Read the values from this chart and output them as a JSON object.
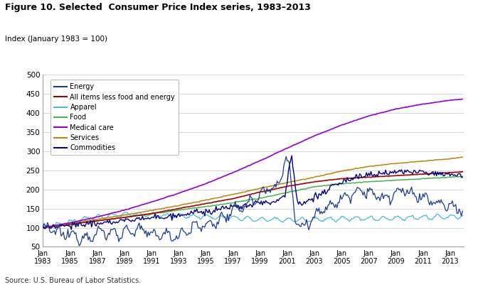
{
  "title": "Figure 10. Selected  Consumer Price Index series, 1983–2013",
  "ylabel": "Index (January 1983 = 100)",
  "source": "Source: U.S. Bureau of Labor Statistics.",
  "ylim": [
    50,
    500
  ],
  "yticks": [
    50,
    100,
    150,
    200,
    250,
    300,
    350,
    400,
    450,
    500
  ],
  "xtick_years": [
    1983,
    1985,
    1987,
    1989,
    1991,
    1993,
    1995,
    1997,
    1999,
    2001,
    2003,
    2005,
    2007,
    2009,
    2011,
    2013
  ],
  "series": {
    "Energy": {
      "color": "#1F3A8F",
      "lw": 0.9
    },
    "All items less food and energy": {
      "color": "#A00000",
      "lw": 1.2
    },
    "Apparel": {
      "color": "#4DB8D8",
      "lw": 0.9
    },
    "Food": {
      "color": "#4CAF50",
      "lw": 1.1
    },
    "Medical care": {
      "color": "#9400D3",
      "lw": 1.2
    },
    "Services": {
      "color": "#B8860B",
      "lw": 1.1
    },
    "Commodities": {
      "color": "#000080",
      "lw": 1.0
    }
  },
  "legend_order": [
    "Energy",
    "All items less food and energy",
    "Apparel",
    "Food",
    "Medical care",
    "Services",
    "Commodities"
  ]
}
